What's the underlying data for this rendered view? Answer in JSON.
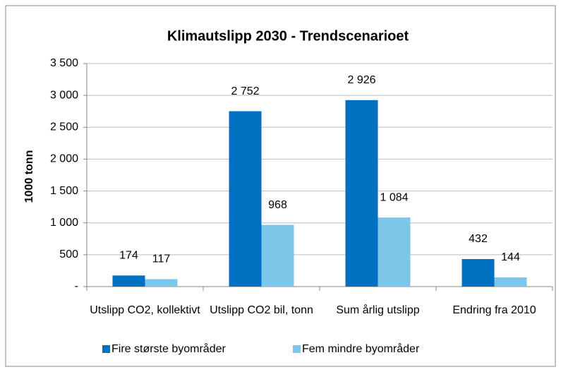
{
  "chart_data": {
    "type": "bar",
    "title": "Klimautslipp 2030 - Trendscenarioet",
    "y_label": "1000 tonn",
    "categories": [
      "Utslipp CO2, kollektivt",
      "Utslipp CO2 bil, tonn",
      "Sum årlig utslipp",
      "Endring fra 2010"
    ],
    "series": [
      {
        "name": "Fire største byområder",
        "color": "#0070c0",
        "values": [
          174,
          2752,
          2926,
          432
        ],
        "value_labels": [
          "174",
          "2 752",
          "2 926",
          "432"
        ]
      },
      {
        "name": "Fem mindre byområder",
        "color": "#7cc6ea",
        "values": [
          117,
          968,
          1084,
          144
        ],
        "value_labels": [
          "117",
          "968",
          "1 084",
          "144"
        ]
      }
    ],
    "ylim": [
      0,
      3500
    ],
    "yticks": [
      {
        "value": 0,
        "label": "-"
      },
      500,
      {
        "value": 1000,
        "label": "1 000"
      },
      {
        "value": 1500,
        "label": "1 500"
      },
      {
        "value": 2000,
        "label": "2 000"
      },
      {
        "value": 2500,
        "label": "2 500"
      },
      {
        "value": 3000,
        "label": "3 000"
      },
      {
        "value": 3500,
        "label": "3 500"
      }
    ],
    "grid": true,
    "legend": "bottom"
  }
}
